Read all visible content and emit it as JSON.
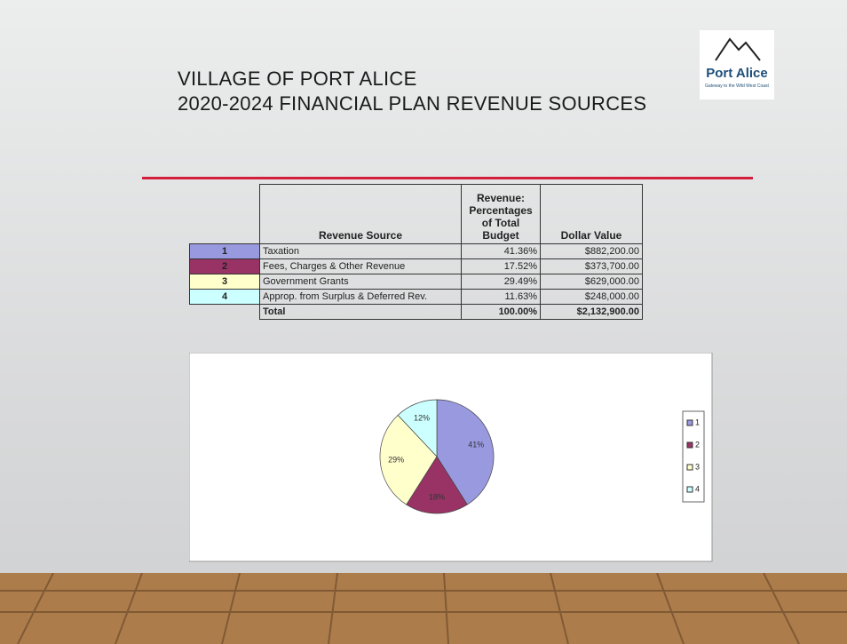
{
  "header": {
    "title_line1": "VILLAGE OF PORT ALICE",
    "title_line2": "2020-2024 FINANCIAL PLAN REVENUE SOURCES"
  },
  "logo": {
    "name": "Port Alice",
    "tagline": "Gateway to the Wild West Coast"
  },
  "table": {
    "columns": [
      "Revenue Source",
      "Revenue: Percentages of Total Budget",
      "Dollar Value"
    ],
    "rows": [
      {
        "number": "1",
        "source": "Taxation",
        "percentage": "41.36%",
        "dollar": "$882,200.00"
      },
      {
        "number": "2",
        "source": "Fees, Charges & Other Revenue",
        "percentage": "17.52%",
        "dollar": "$373,700.00"
      },
      {
        "number": "3",
        "source": "Government Grants",
        "percentage": "29.49%",
        "dollar": "$629,000.00"
      },
      {
        "number": "4",
        "source": "Approp. from Surplus & Deferred Rev.",
        "percentage": "11.63%",
        "dollar": "$248,000.00"
      }
    ],
    "total": {
      "label": "Total",
      "percentage": "100.00%",
      "dollar": "$2,132,900.00"
    }
  },
  "chart_data": {
    "type": "pie",
    "categories": [
      "1",
      "2",
      "3",
      "4"
    ],
    "values": [
      41,
      18,
      29,
      12
    ],
    "value_labels": [
      "41%",
      "18%",
      "29%",
      "12%"
    ],
    "colors": [
      "#9999e0",
      "#993366",
      "#ffffcc",
      "#ccffff"
    ]
  }
}
